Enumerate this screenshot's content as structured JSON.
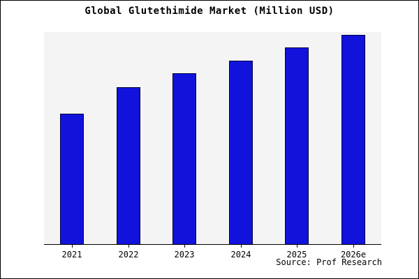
{
  "chart_data": {
    "type": "bar",
    "title": "Global Glutethimide Market (Million USD)",
    "categories": [
      "2021",
      "2022",
      "2023",
      "2024",
      "2025",
      "2026e"
    ],
    "values": [
      62.3,
      75.0,
      81.7,
      87.7,
      94.0,
      100.0
    ],
    "value_note": "No y-axis scale is shown in the image; values are relative bar heights with 2026e = 100",
    "xlabel": "",
    "ylabel": "",
    "ylim": [
      0,
      101.7
    ],
    "grid": false,
    "legend_position": "none",
    "colors": {
      "bar_fill": "#1212DD",
      "bar_border": "#000040",
      "plot_background": "#f4f4f4",
      "frame_border": "#000000"
    }
  },
  "footer": {
    "source_label": "Source: Prof Research"
  }
}
